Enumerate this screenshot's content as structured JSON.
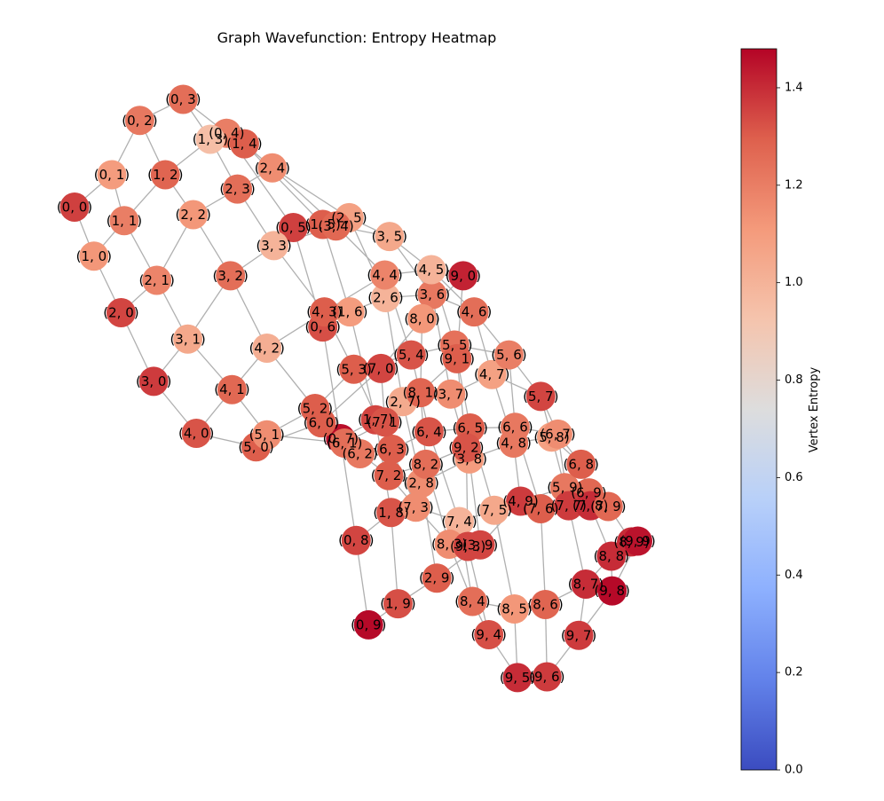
{
  "chart_data": {
    "type": "network-graph",
    "title": "Graph Wavefunction: Entropy Heatmap",
    "colormap": "coolwarm",
    "colorbar": {
      "label": "Vertex Entropy",
      "range": [
        0.0,
        1.48
      ],
      "ticks": [
        "0.0",
        "0.2",
        "0.4",
        "0.6",
        "0.8",
        "1.0",
        "1.2",
        "1.4"
      ]
    },
    "grid_size": [
      10,
      10
    ],
    "nodes": [
      {
        "id": "0,0",
        "label": "(0, 0)",
        "x": -3.01,
        "y": 3.01,
        "entropy": 1.36
      },
      {
        "id": "0,1",
        "label": "(0, 1)",
        "x": -2.53,
        "y": 3.44,
        "entropy": 1.1
      },
      {
        "id": "0,2",
        "label": "(0, 2)",
        "x": -2.17,
        "y": 4.16,
        "entropy": 1.22
      },
      {
        "id": "0,3",
        "label": "(0, 3)",
        "x": -1.61,
        "y": 4.44,
        "entropy": 1.25
      },
      {
        "id": "0,4",
        "label": "(0, 4)",
        "x": -1.05,
        "y": 3.99,
        "entropy": 1.2
      },
      {
        "id": "0,5",
        "label": "(0, 5)",
        "x": -0.19,
        "y": 2.74,
        "entropy": 1.36
      },
      {
        "id": "0,6",
        "label": "(0, 6)",
        "x": 0.19,
        "y": 1.42,
        "entropy": 1.33
      },
      {
        "id": "0,7",
        "label": "(0, 7)",
        "x": 0.42,
        "y": -0.06,
        "entropy": 1.46
      },
      {
        "id": "0,8",
        "label": "(0, 8)",
        "x": 0.62,
        "y": -1.41,
        "entropy": 1.35
      },
      {
        "id": "0,9",
        "label": "(0, 9)",
        "x": 0.78,
        "y": -2.53,
        "entropy": 1.47
      },
      {
        "id": "1,0",
        "label": "(1, 0)",
        "x": -2.76,
        "y": 2.36,
        "entropy": 1.12
      },
      {
        "id": "1,1",
        "label": "(1, 1)",
        "x": -2.37,
        "y": 2.83,
        "entropy": 1.2
      },
      {
        "id": "1,2",
        "label": "(1, 2)",
        "x": -1.84,
        "y": 3.44,
        "entropy": 1.28
      },
      {
        "id": "1,3",
        "label": "(1, 3)",
        "x": -1.26,
        "y": 3.91,
        "entropy": 0.95
      },
      {
        "id": "1,4",
        "label": "(1, 4)",
        "x": -0.82,
        "y": 3.85,
        "entropy": 1.3
      },
      {
        "id": "1,5",
        "label": "(1, 5)",
        "x": 0.19,
        "y": 2.78,
        "entropy": 1.3
      },
      {
        "id": "1,6",
        "label": "(1, 6)",
        "x": 0.54,
        "y": 1.62,
        "entropy": 1.1
      },
      {
        "id": "1,7",
        "label": "(1, 7)",
        "x": 0.87,
        "y": 0.19,
        "entropy": 1.35
      },
      {
        "id": "1,8",
        "label": "(1, 8)",
        "x": 1.07,
        "y": -1.04,
        "entropy": 1.32
      },
      {
        "id": "1,9",
        "label": "(1, 9)",
        "x": 1.16,
        "y": -2.25,
        "entropy": 1.33
      },
      {
        "id": "2,0",
        "label": "(2, 0)",
        "x": -2.41,
        "y": 1.61,
        "entropy": 1.35
      },
      {
        "id": "2,1",
        "label": "(2, 1)",
        "x": -1.95,
        "y": 2.04,
        "entropy": 1.18
      },
      {
        "id": "2,2",
        "label": "(2, 2)",
        "x": -1.48,
        "y": 2.91,
        "entropy": 1.12
      },
      {
        "id": "2,3",
        "label": "(2, 3)",
        "x": -0.91,
        "y": 3.25,
        "entropy": 1.25
      },
      {
        "id": "2,4",
        "label": "(2, 4)",
        "x": -0.46,
        "y": 3.53,
        "entropy": 1.15
      },
      {
        "id": "2,5",
        "label": "(2, 5)",
        "x": 0.53,
        "y": 2.87,
        "entropy": 1.08
      },
      {
        "id": "2,6",
        "label": "(2, 6)",
        "x": 1.0,
        "y": 1.81,
        "entropy": 1.0
      },
      {
        "id": "2,7",
        "label": "(2, 7)",
        "x": 1.22,
        "y": 0.43,
        "entropy": 1.04
      },
      {
        "id": "2,8",
        "label": "(2, 8)",
        "x": 1.46,
        "y": -0.65,
        "entropy": 1.15
      },
      {
        "id": "2,9",
        "label": "(2, 9)",
        "x": 1.66,
        "y": -1.91,
        "entropy": 1.3
      },
      {
        "id": "3,0",
        "label": "(3, 0)",
        "x": -1.99,
        "y": 0.7,
        "entropy": 1.37
      },
      {
        "id": "3,1",
        "label": "(3, 1)",
        "x": -1.55,
        "y": 1.26,
        "entropy": 1.05
      },
      {
        "id": "3,2",
        "label": "(3, 2)",
        "x": -1.0,
        "y": 2.1,
        "entropy": 1.25
      },
      {
        "id": "3,3",
        "label": "(3, 3)",
        "x": -0.44,
        "y": 2.5,
        "entropy": 1.0
      },
      {
        "id": "3,4",
        "label": "(3, 4)",
        "x": 0.36,
        "y": 2.76,
        "entropy": 1.27
      },
      {
        "id": "3,5",
        "label": "(3, 5)",
        "x": 1.05,
        "y": 2.62,
        "entropy": 1.05
      },
      {
        "id": "3,6",
        "label": "(3, 6)",
        "x": 1.6,
        "y": 1.85,
        "entropy": 1.22
      },
      {
        "id": "3,7",
        "label": "(3, 7)",
        "x": 1.84,
        "y": 0.53,
        "entropy": 1.15
      },
      {
        "id": "3,8",
        "label": "(3, 8)",
        "x": 2.08,
        "y": -0.33,
        "entropy": 1.1
      },
      {
        "id": "3,9",
        "label": "(3, 9)",
        "x": 2.22,
        "y": -1.47,
        "entropy": 1.35
      },
      {
        "id": "4,0",
        "label": "(4, 0)",
        "x": -1.44,
        "y": 0.01,
        "entropy": 1.32
      },
      {
        "id": "4,1",
        "label": "(4, 1)",
        "x": -0.98,
        "y": 0.59,
        "entropy": 1.27
      },
      {
        "id": "4,2",
        "label": "(4, 2)",
        "x": -0.53,
        "y": 1.14,
        "entropy": 1.02
      },
      {
        "id": "4,3",
        "label": "(4, 3)",
        "x": 0.21,
        "y": 1.62,
        "entropy": 1.3
      },
      {
        "id": "4,4",
        "label": "(4, 4)",
        "x": 0.99,
        "y": 2.11,
        "entropy": 1.18
      },
      {
        "id": "4,5",
        "label": "(4, 5)",
        "x": 1.59,
        "y": 2.18,
        "entropy": 1.0
      },
      {
        "id": "4,6",
        "label": "(4, 6)",
        "x": 2.14,
        "y": 1.62,
        "entropy": 1.25
      },
      {
        "id": "4,7",
        "label": "(4, 7)",
        "x": 2.37,
        "y": 0.79,
        "entropy": 1.08
      },
      {
        "id": "4,8",
        "label": "(4, 8)",
        "x": 2.65,
        "y": -0.12,
        "entropy": 1.22
      },
      {
        "id": "4,9",
        "label": "(4, 9)",
        "x": 2.74,
        "y": -0.89,
        "entropy": 1.37
      },
      {
        "id": "5,0",
        "label": "(5, 0)",
        "x": -0.67,
        "y": -0.17,
        "entropy": 1.3
      },
      {
        "id": "5,1",
        "label": "(5, 1)",
        "x": -0.53,
        "y": -0.01,
        "entropy": 1.15
      },
      {
        "id": "5,2",
        "label": "(5, 2)",
        "x": 0.09,
        "y": 0.34,
        "entropy": 1.3
      },
      {
        "id": "5,3",
        "label": "(5, 3)",
        "x": 0.59,
        "y": 0.86,
        "entropy": 1.3
      },
      {
        "id": "5,4",
        "label": "(5, 4)",
        "x": 1.33,
        "y": 1.05,
        "entropy": 1.32
      },
      {
        "id": "5,5",
        "label": "(5, 5)",
        "x": 1.89,
        "y": 1.18,
        "entropy": 1.24
      },
      {
        "id": "5,6",
        "label": "(5, 6)",
        "x": 2.59,
        "y": 1.05,
        "entropy": 1.2
      },
      {
        "id": "5,7",
        "label": "(5, 7)",
        "x": 3.0,
        "y": 0.5,
        "entropy": 1.35
      },
      {
        "id": "5,8",
        "label": "(5, 8)",
        "x": 3.14,
        "y": -0.04,
        "entropy": 1.08
      },
      {
        "id": "5,9",
        "label": "(5, 9)",
        "x": 3.31,
        "y": -0.71,
        "entropy": 1.22
      },
      {
        "id": "6,0",
        "label": "(6, 0)",
        "x": 0.17,
        "y": 0.15,
        "entropy": 1.3
      },
      {
        "id": "6,1",
        "label": "(6, 1)",
        "x": 0.47,
        "y": -0.12,
        "entropy": 1.25
      },
      {
        "id": "6,2",
        "label": "(6, 2)",
        "x": 0.67,
        "y": -0.26,
        "entropy": 1.22
      },
      {
        "id": "6,3",
        "label": "(6, 3)",
        "x": 1.08,
        "y": -0.2,
        "entropy": 1.3
      },
      {
        "id": "6,4",
        "label": "(6, 4)",
        "x": 1.56,
        "y": 0.03,
        "entropy": 1.32
      },
      {
        "id": "6,5",
        "label": "(6, 5)",
        "x": 2.09,
        "y": 0.08,
        "entropy": 1.3
      },
      {
        "id": "6,6",
        "label": "(6, 6)",
        "x": 2.67,
        "y": 0.09,
        "entropy": 1.22
      },
      {
        "id": "6,7",
        "label": "(6, 7)",
        "x": 3.22,
        "y": 0.0,
        "entropy": 1.15
      },
      {
        "id": "6,8",
        "label": "(6, 8)",
        "x": 3.52,
        "y": -0.4,
        "entropy": 1.3
      },
      {
        "id": "6,9",
        "label": "(6, 9)",
        "x": 3.62,
        "y": -0.78,
        "entropy": 1.27
      },
      {
        "id": "7,0",
        "label": "(7, 0)",
        "x": 0.94,
        "y": 0.87,
        "entropy": 1.35
      },
      {
        "id": "7,1",
        "label": "(7, 1)",
        "x": 0.99,
        "y": 0.16,
        "entropy": 1.32
      },
      {
        "id": "7,2",
        "label": "(7, 2)",
        "x": 1.04,
        "y": -0.55,
        "entropy": 1.3
      },
      {
        "id": "7,3",
        "label": "(7, 3)",
        "x": 1.39,
        "y": -0.97,
        "entropy": 1.15
      },
      {
        "id": "7,4",
        "label": "(7, 4)",
        "x": 1.95,
        "y": -1.16,
        "entropy": 1.0
      },
      {
        "id": "7,5",
        "label": "(7, 5)",
        "x": 2.4,
        "y": -1.01,
        "entropy": 1.05
      },
      {
        "id": "7,6",
        "label": "(7, 6)",
        "x": 3.0,
        "y": -0.99,
        "entropy": 1.3
      },
      {
        "id": "7,7",
        "label": "(7, 7)",
        "x": 3.36,
        "y": -0.95,
        "entropy": 1.37
      },
      {
        "id": "7,8",
        "label": "(7, 8)",
        "x": 3.64,
        "y": -0.95,
        "entropy": 1.4
      },
      {
        "id": "7,9",
        "label": "(7, 9)",
        "x": 3.87,
        "y": -0.96,
        "entropy": 1.27
      },
      {
        "id": "8,0",
        "label": "(8, 0)",
        "x": 1.47,
        "y": 1.53,
        "entropy": 1.12
      },
      {
        "id": "8,1",
        "label": "(8, 1)",
        "x": 1.45,
        "y": 0.55,
        "entropy": 1.28
      },
      {
        "id": "8,2",
        "label": "(8, 2)",
        "x": 1.52,
        "y": -0.4,
        "entropy": 1.25
      },
      {
        "id": "8,3",
        "label": "(8, 3)",
        "x": 1.82,
        "y": -1.46,
        "entropy": 1.15
      },
      {
        "id": "8,4",
        "label": "(8, 4)",
        "x": 2.12,
        "y": -2.22,
        "entropy": 1.25
      },
      {
        "id": "8,5",
        "label": "(8, 5)",
        "x": 2.66,
        "y": -2.32,
        "entropy": 1.12
      },
      {
        "id": "8,6",
        "label": "(8, 6)",
        "x": 3.06,
        "y": -2.26,
        "entropy": 1.28
      },
      {
        "id": "8,7",
        "label": "(8, 7)",
        "x": 3.58,
        "y": -1.99,
        "entropy": 1.4
      },
      {
        "id": "8,8",
        "label": "(8, 8)",
        "x": 3.91,
        "y": -1.62,
        "entropy": 1.4
      },
      {
        "id": "8,9",
        "label": "(8, 9)",
        "x": 4.17,
        "y": -1.43,
        "entropy": 1.4
      },
      {
        "id": "9,0",
        "label": "(9, 0)",
        "x": 2.0,
        "y": 2.1,
        "entropy": 1.42
      },
      {
        "id": "9,1",
        "label": "(9, 1)",
        "x": 1.92,
        "y": 1.0,
        "entropy": 1.3
      },
      {
        "id": "9,2",
        "label": "(9, 2)",
        "x": 2.04,
        "y": -0.18,
        "entropy": 1.32
      },
      {
        "id": "9,3",
        "label": "(9, 3)",
        "x": 2.06,
        "y": -1.49,
        "entropy": 1.35
      },
      {
        "id": "9,4",
        "label": "(9, 4)",
        "x": 2.33,
        "y": -2.66,
        "entropy": 1.33
      },
      {
        "id": "9,5",
        "label": "(9, 5)",
        "x": 2.7,
        "y": -3.23,
        "entropy": 1.4
      },
      {
        "id": "9,6",
        "label": "(9, 6)",
        "x": 3.08,
        "y": -3.22,
        "entropy": 1.37
      },
      {
        "id": "9,7",
        "label": "(9, 7)",
        "x": 3.49,
        "y": -2.67,
        "entropy": 1.37
      },
      {
        "id": "9,8",
        "label": "(9, 8)",
        "x": 3.92,
        "y": -2.08,
        "entropy": 1.47
      },
      {
        "id": "9,9",
        "label": "(9, 9)",
        "x": 4.25,
        "y": -1.42,
        "entropy": 1.45
      }
    ]
  }
}
